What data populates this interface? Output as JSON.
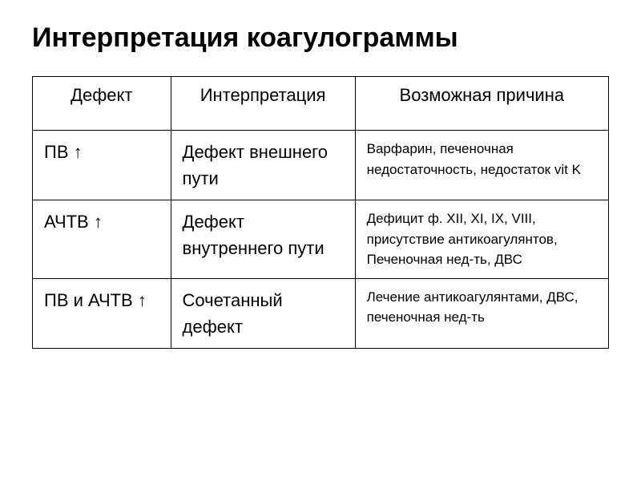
{
  "title": "Интерпретация коагулограммы",
  "table": {
    "columns": [
      "Дефект",
      "Интерпретация",
      "Возможная причина"
    ],
    "col_widths_pct": [
      24,
      32,
      44
    ],
    "header_fontsize_pt": 22,
    "defect_fontsize_pt": 22,
    "interp_fontsize_pt": 22,
    "cause_fontsize_pt": 17,
    "border_color": "#000000",
    "background_color": "#ffffff",
    "rows": [
      {
        "defect": "ПВ ↑",
        "interpretation": "Дефект внешнего пути",
        "cause": "Варфарин, печеночная недостаточность, недостаток vit K"
      },
      {
        "defect": "АЧТВ ↑",
        "interpretation": "Дефект внутреннего пути",
        "cause": "Дефицит ф. XII, XI, IX, VIII, присутствие антикоагулянтов, Печеночная нед-ть, ДВС"
      },
      {
        "defect": "ПВ и АЧТВ ↑",
        "interpretation": "Сочетанный дефект",
        "cause": "Лечение антикоагулянтами, ДВС, печеночная нед-ть"
      }
    ]
  },
  "title_fontsize_pt": 34,
  "text_color": "#000000"
}
